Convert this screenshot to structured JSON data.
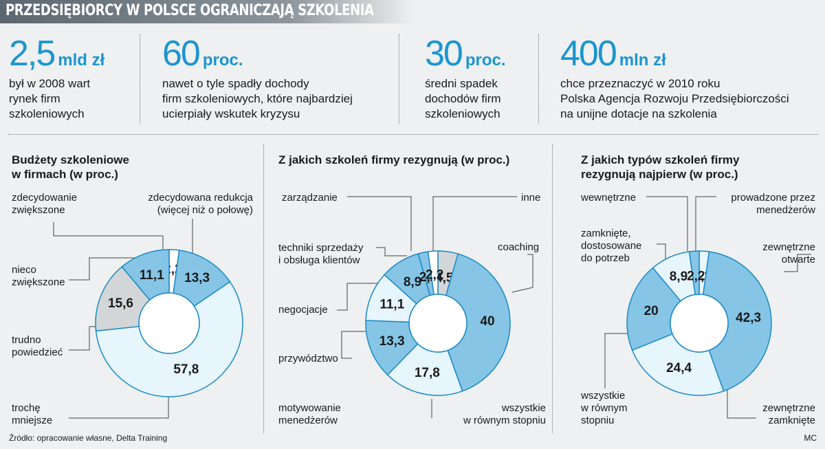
{
  "title": "PRZEDSIĘBIORCY W POLSCE OGRANICZAJĄ SZKOLENIA",
  "stats": [
    {
      "value": "2,5",
      "unit": "mld zł",
      "text": "był w 2008 wart\nrynek firm\nszkoleniowych"
    },
    {
      "value": "60",
      "unit": "proc.",
      "text": "nawet o tyle spadły dochody\nfirm szkoleniowych, które najbardziej\nucierpiały wskutek kryzysu"
    },
    {
      "value": "30",
      "unit": "proc.",
      "text": "średni spadek\ndochodów firm\nszkoleniowych"
    },
    {
      "value": "400",
      "unit": "mln zł",
      "text": "chce przeznaczyć w 2010 roku\nPolska Agencja Rozwoju Przedsiębiorczości\nna unijne dotacje na szkolenia"
    }
  ],
  "colors": {
    "dark": "#86c5e6",
    "light": "#e7f5fc",
    "grey": "#d3d6d8",
    "white": "#ffffff",
    "accent": "#1b95cf",
    "stroke": "#1a8ac2"
  },
  "chart_data": [
    {
      "type": "pie",
      "title": "Budżety szkoleniowe\nw firmach (w proc.)",
      "slices": [
        {
          "label": "zdecydowanie\nzwiększone",
          "value": 2.2,
          "display": "2,2",
          "color": "white"
        },
        {
          "label": "zdecydowana redukcja\n(więcej niż o połowę)",
          "value": 13.3,
          "display": "13,3",
          "color": "dark"
        },
        {
          "label": "trochę\nmniejsze",
          "value": 57.8,
          "display": "57,8",
          "color": "light"
        },
        {
          "label": "trudno\npowiedzieć",
          "value": 15.6,
          "display": "15,6",
          "color": "grey"
        },
        {
          "label": "nieco\nzwiększone",
          "value": 11.1,
          "display": "11,1",
          "color": "dark"
        }
      ]
    },
    {
      "type": "pie",
      "title": "Z jakich szkoleń firmy rezygnują (w proc.)",
      "slices": [
        {
          "label": "inne",
          "value": 4.5,
          "display": "4,5",
          "color": "grey"
        },
        {
          "label": "coaching",
          "value": 40,
          "display": "40",
          "color": "dark"
        },
        {
          "label": "wszystkie\nw równym stopniu",
          "value": 17.8,
          "display": "17,8",
          "color": "light"
        },
        {
          "label": "motywowanie\nmenedżerów",
          "value": 13.3,
          "display": "13,3",
          "color": "dark"
        },
        {
          "label": "przywództwo",
          "value": 11.1,
          "display": "11,1",
          "color": "light"
        },
        {
          "label": "negocjacje",
          "value": 8.9,
          "display": "8,9",
          "color": "dark"
        },
        {
          "label": "techniki sprzedaży\ni obsługa klientów",
          "value": 2.2,
          "display": "2,2",
          "color": "dark"
        },
        {
          "label": "zarządzanie",
          "value": 2.2,
          "display": "2,2",
          "color": "white"
        }
      ]
    },
    {
      "type": "pie",
      "title": "Z jakich typów szkoleń firmy\nrezygnują najpierw (w proc.)",
      "slices": [
        {
          "label": "prowadzone przez\nmenedżerów",
          "value": 2.2,
          "display": "2,2",
          "color": "light"
        },
        {
          "label": "zewnętrzne\notwarte",
          "value": 42.3,
          "display": "42,3",
          "color": "dark"
        },
        {
          "label": "zewnętrzne\nzamknięte",
          "value": 24.4,
          "display": "24,4",
          "color": "light"
        },
        {
          "label": "wszystkie\nw równym\nstopniu",
          "value": 20,
          "display": "20",
          "color": "dark"
        },
        {
          "label": "zamknięte,\ndostosowane\ndo potrzeb",
          "value": 8.9,
          "display": "8,9",
          "color": "light"
        },
        {
          "label": "wewnętrzne",
          "value": 2.2,
          "display": "2,2",
          "color": "dark"
        }
      ]
    }
  ],
  "footer": {
    "source": "Źródło: opracowanie własne, Delta Training",
    "credit": "MC"
  }
}
